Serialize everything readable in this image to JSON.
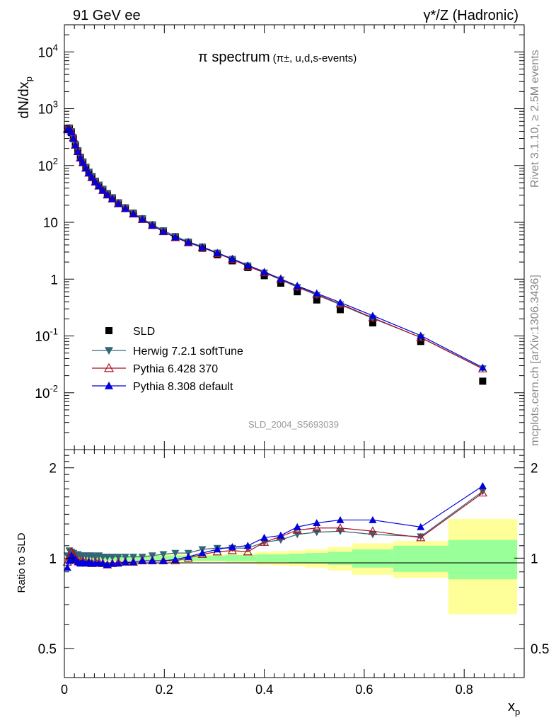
{
  "header": {
    "left": "91 GeV ee",
    "right": "γ*/Z (Hadronic)"
  },
  "plot_title": {
    "main": "π spectrum",
    "sub": "(π±, u,d,s-events)"
  },
  "side_labels": {
    "top": "Rivet 3.1.10, ≥ 2.5M events",
    "bottom": "mcplots.cern.ch [arXiv:1306.3436]"
  },
  "analysis_tag": "SLD_2004_S5693039",
  "legend": {
    "items": [
      {
        "label": "SLD",
        "marker": "square",
        "color": "#000000"
      },
      {
        "label": "Herwig 7.2.1 softTune",
        "marker": "tri-down",
        "color": "#336677"
      },
      {
        "label": "Pythia 6.428 370",
        "marker": "tri-up-open",
        "color": "#aa1122"
      },
      {
        "label": "Pythia 8.308 default",
        "marker": "tri-up",
        "color": "#0000dd"
      }
    ]
  },
  "colors": {
    "sld": "#000000",
    "herwig": "#336677",
    "pythia6": "#aa1122",
    "pythia8": "#0000dd",
    "band_outer": "#ffff99",
    "band_inner": "#99ff99"
  },
  "chart_data": {
    "type": "scatter",
    "main_panel": {
      "ylabel": "dN/dx_p",
      "yscale": "log",
      "ylim": [
        0.001,
        30000
      ],
      "ytick_labels": [
        "10^-2",
        "10^-1",
        "1",
        "10",
        "10^2",
        "10^3",
        "10^4"
      ]
    },
    "ratio_panel": {
      "ylabel": "Ratio to SLD",
      "ylim": [
        0.4,
        2.3
      ],
      "ytick_labels": [
        "0.5",
        "1",
        "2"
      ]
    },
    "xlabel": "x_p",
    "xlim": [
      0,
      0.92
    ],
    "xtick_labels": [
      "0",
      "0.2",
      "0.4",
      "0.6",
      "0.8"
    ],
    "x": [
      0.006,
      0.01,
      0.014,
      0.018,
      0.022,
      0.027,
      0.032,
      0.037,
      0.043,
      0.049,
      0.055,
      0.062,
      0.069,
      0.077,
      0.086,
      0.096,
      0.108,
      0.122,
      0.138,
      0.156,
      0.176,
      0.198,
      0.222,
      0.248,
      0.276,
      0.306,
      0.336,
      0.367,
      0.4,
      0.433,
      0.466,
      0.505,
      0.552,
      0.617,
      0.713,
      0.837
    ],
    "band_edges": [
      0.003,
      0.008,
      0.012,
      0.016,
      0.02,
      0.024,
      0.03,
      0.034,
      0.04,
      0.046,
      0.052,
      0.058,
      0.066,
      0.072,
      0.082,
      0.09,
      0.102,
      0.114,
      0.13,
      0.146,
      0.166,
      0.186,
      0.21,
      0.234,
      0.262,
      0.29,
      0.322,
      0.35,
      0.384,
      0.416,
      0.45,
      0.482,
      0.528,
      0.576,
      0.658,
      0.768,
      0.906
    ],
    "series": [
      {
        "name": "SLD",
        "values": [
          450,
          440,
          380,
          300,
          230,
          180,
          140,
          115,
          93,
          76,
          64,
          53,
          45,
          38,
          32,
          27,
          22,
          18,
          14.5,
          11.5,
          9,
          7,
          5.5,
          4.4,
          3.5,
          2.7,
          2.1,
          1.6,
          1.15,
          0.85,
          0.6,
          0.43,
          0.29,
          0.17,
          0.08,
          0.016
        ],
        "rel_err_inner": [
          0.03,
          0.03,
          0.03,
          0.025,
          0.025,
          0.02,
          0.02,
          0.02,
          0.02,
          0.02,
          0.02,
          0.02,
          0.02,
          0.02,
          0.02,
          0.02,
          0.02,
          0.02,
          0.02,
          0.02,
          0.02,
          0.02,
          0.02,
          0.02,
          0.02,
          0.02,
          0.025,
          0.025,
          0.03,
          0.03,
          0.035,
          0.04,
          0.05,
          0.07,
          0.1,
          0.15
        ],
        "rel_err_outer": [
          0.03,
          0.03,
          0.03,
          0.025,
          0.025,
          0.02,
          0.02,
          0.02,
          0.02,
          0.02,
          0.02,
          0.02,
          0.02,
          0.02,
          0.02,
          0.02,
          0.02,
          0.02,
          0.02,
          0.02,
          0.025,
          0.03,
          0.03,
          0.03,
          0.03,
          0.03,
          0.035,
          0.04,
          0.05,
          0.055,
          0.06,
          0.07,
          0.09,
          0.12,
          0.14,
          0.35
        ]
      },
      {
        "name": "Herwig 7.2.1 softTune",
        "ratio": [
          1.02,
          1.06,
          1.05,
          1.04,
          1.03,
          1.03,
          1.02,
          1.02,
          1.02,
          1.02,
          1.02,
          1.01,
          1.02,
          1.01,
          1.01,
          1.01,
          1.01,
          1.01,
          1.01,
          1.01,
          1.02,
          1.03,
          1.04,
          1.04,
          1.07,
          1.08,
          1.08,
          1.08,
          1.13,
          1.15,
          1.2,
          1.22,
          1.23,
          1.2,
          1.18,
          1.67
        ]
      },
      {
        "name": "Pythia 6.428 370",
        "ratio": [
          0.97,
          1.01,
          1.05,
          1.03,
          1.0,
          0.98,
          0.97,
          0.98,
          0.97,
          0.97,
          0.96,
          0.97,
          0.97,
          0.96,
          0.95,
          0.96,
          0.97,
          0.97,
          0.97,
          0.98,
          0.98,
          0.98,
          0.98,
          1.0,
          1.03,
          1.05,
          1.06,
          1.05,
          1.13,
          1.18,
          1.24,
          1.26,
          1.26,
          1.23,
          1.17,
          1.65
        ]
      },
      {
        "name": "Pythia 8.308 default",
        "ratio": [
          0.93,
          0.98,
          1.02,
          1.0,
          0.99,
          0.97,
          0.96,
          0.97,
          0.96,
          0.97,
          0.96,
          0.96,
          0.96,
          0.96,
          0.95,
          0.96,
          0.96,
          0.97,
          0.97,
          0.98,
          0.98,
          0.98,
          0.99,
          1.01,
          1.04,
          1.07,
          1.09,
          1.1,
          1.17,
          1.19,
          1.27,
          1.31,
          1.34,
          1.34,
          1.27,
          1.74
        ]
      }
    ]
  }
}
